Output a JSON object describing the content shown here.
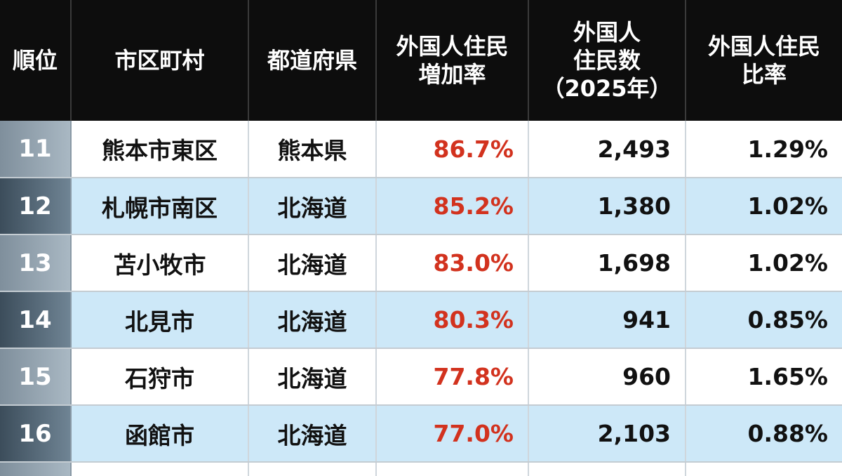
{
  "table": {
    "headers": [
      [
        "順位"
      ],
      [
        "市区町村"
      ],
      [
        "都道府県"
      ],
      [
        "外国人住民",
        "増加率"
      ],
      [
        "外国人",
        "住民数",
        "（2025年）"
      ],
      [
        "外国人住民",
        "比率"
      ]
    ],
    "rows": [
      {
        "rank": "11",
        "city": "熊本市東区",
        "prefecture": "熊本県",
        "growth": "86.7%",
        "residents": "2,493",
        "ratio": "1.29%"
      },
      {
        "rank": "12",
        "city": "札幌市南区",
        "prefecture": "北海道",
        "growth": "85.2%",
        "residents": "1,380",
        "ratio": "1.02%"
      },
      {
        "rank": "13",
        "city": "苫小牧市",
        "prefecture": "北海道",
        "growth": "83.0%",
        "residents": "1,698",
        "ratio": "1.02%"
      },
      {
        "rank": "14",
        "city": "北見市",
        "prefecture": "北海道",
        "growth": "80.3%",
        "residents": "941",
        "ratio": "0.85%"
      },
      {
        "rank": "15",
        "city": "石狩市",
        "prefecture": "北海道",
        "growth": "77.8%",
        "residents": "960",
        "ratio": "1.65%"
      },
      {
        "rank": "16",
        "city": "函館市",
        "prefecture": "北海道",
        "growth": "77.0%",
        "residents": "2,103",
        "ratio": "0.88%"
      }
    ]
  },
  "colors": {
    "header_bg": "#0d0d0d",
    "header_text": "#ffffff",
    "row_alt_bg": "#cde8f8",
    "growth_text": "#d2321e"
  }
}
